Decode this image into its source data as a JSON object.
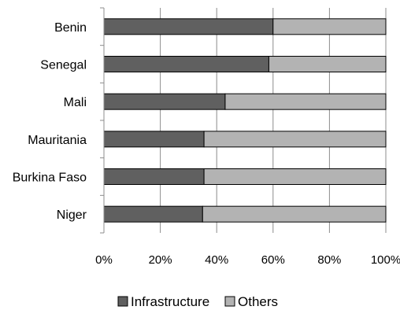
{
  "chart_data": {
    "type": "bar",
    "orientation": "horizontal",
    "stacked": true,
    "percent_stacked": true,
    "categories": [
      "Benin",
      "Senegal",
      "Mali",
      "Mauritania",
      "Burkina Faso",
      "Niger"
    ],
    "series": [
      {
        "name": "Infrastructure",
        "values": [
          60,
          58.5,
          43,
          35.5,
          35.5,
          35
        ],
        "color": "#606060"
      },
      {
        "name": "Others",
        "values": [
          40,
          41.5,
          57,
          64.5,
          64.5,
          65
        ],
        "color": "#b3b3b3"
      }
    ],
    "x_ticks": [
      "0%",
      "20%",
      "40%",
      "60%",
      "80%",
      "100%"
    ],
    "xlim": [
      0,
      100
    ],
    "grid": true,
    "legend_position": "bottom",
    "title": "",
    "xlabel": "",
    "ylabel": ""
  }
}
